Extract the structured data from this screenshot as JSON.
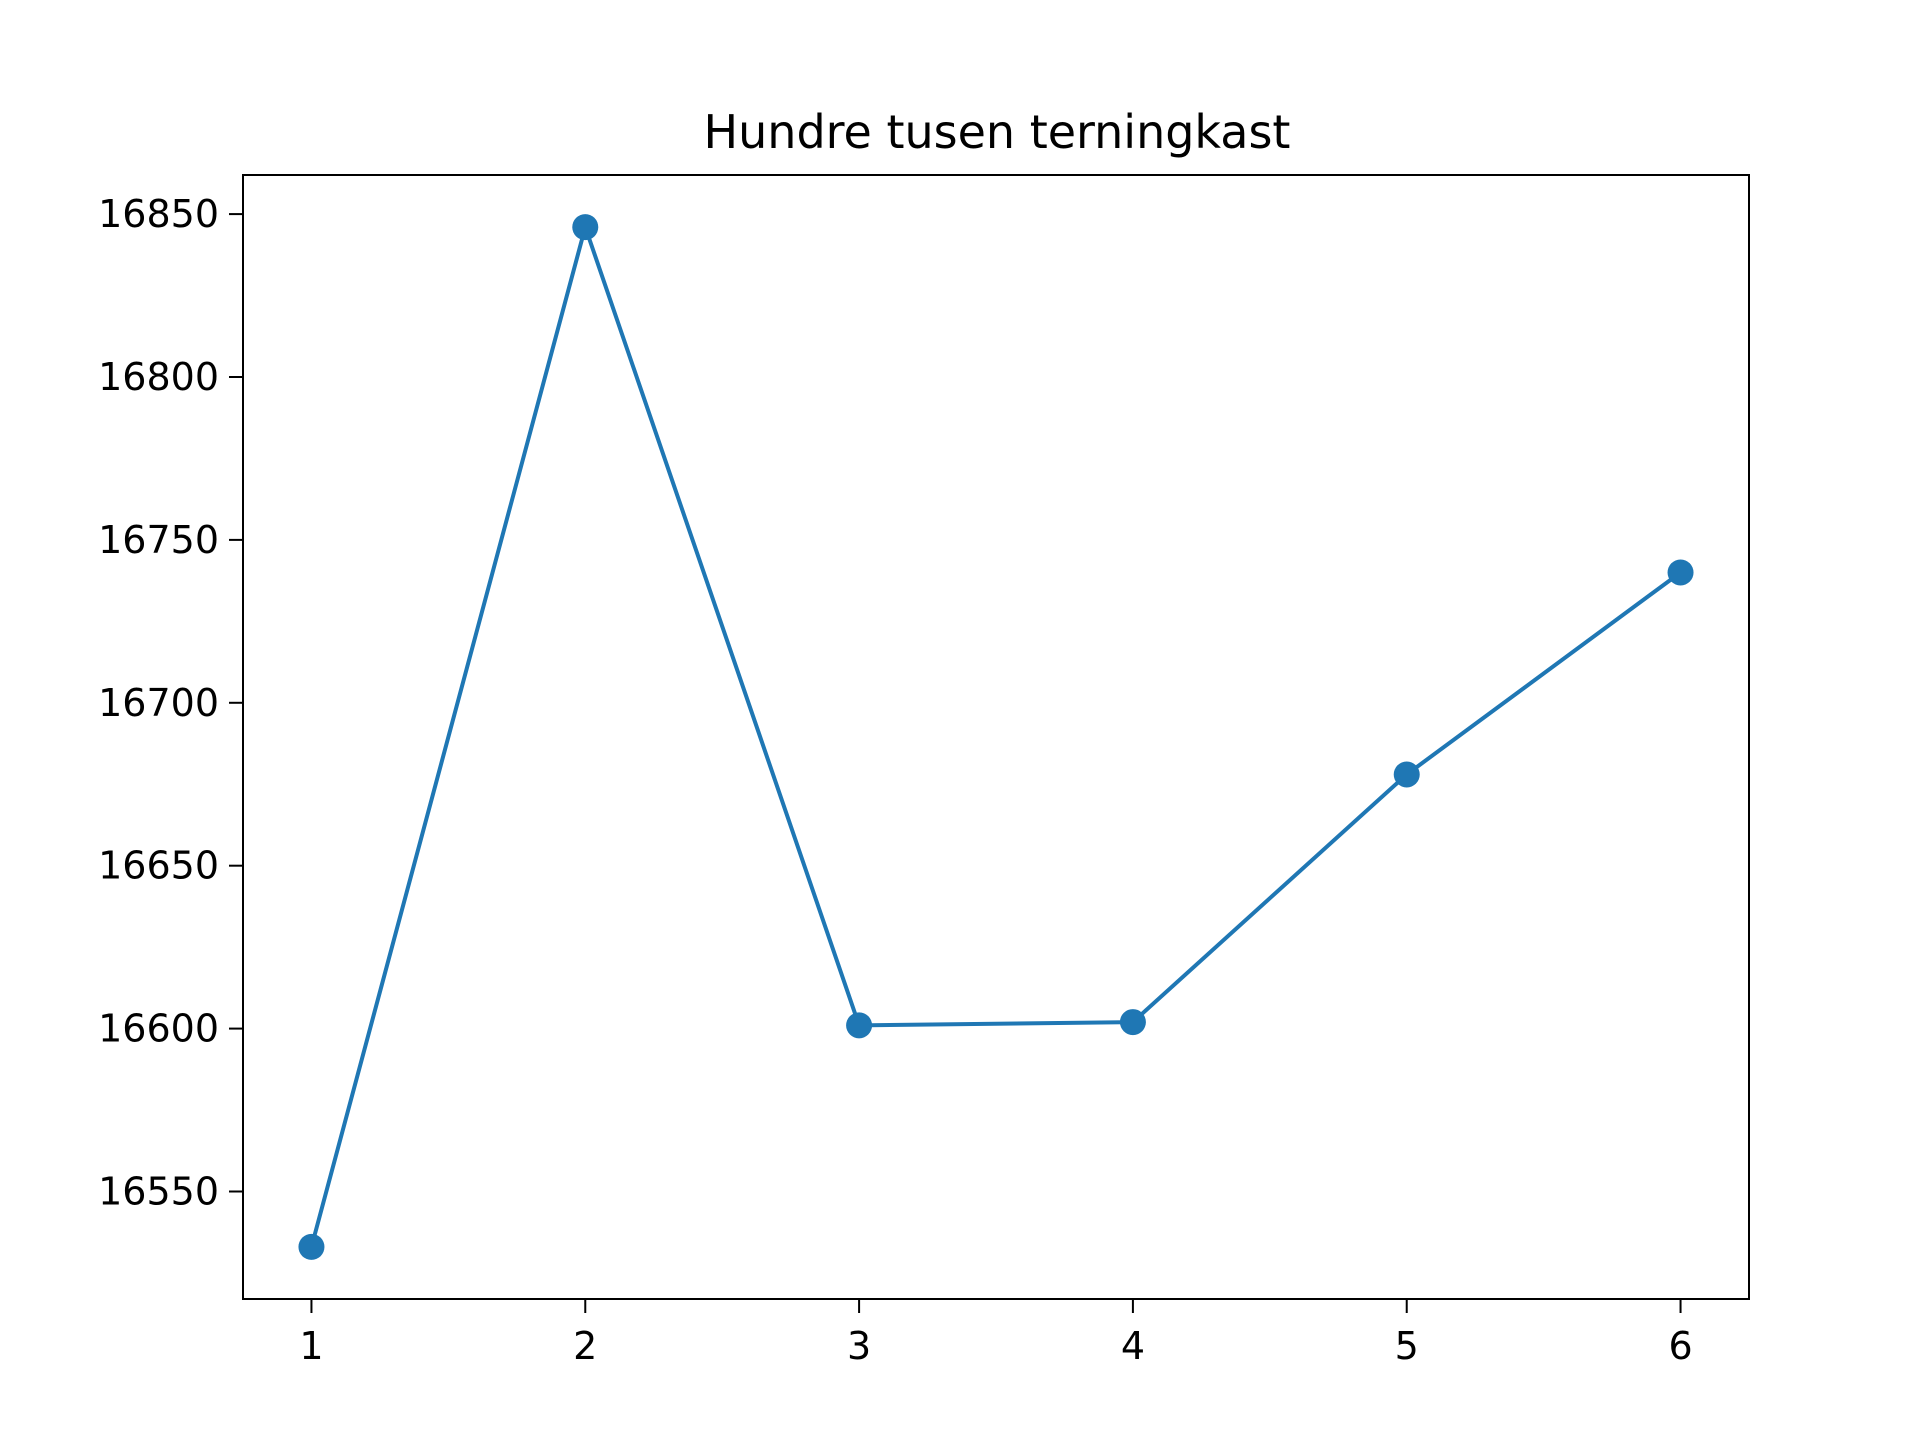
{
  "chart_data": {
    "type": "line",
    "title": "Hundre tusen terningkast",
    "xlabel": "",
    "ylabel": "",
    "x": [
      1,
      2,
      3,
      4,
      5,
      6
    ],
    "series": [
      {
        "values": [
          16533,
          16846,
          16601,
          16602,
          16678,
          16740
        ]
      }
    ],
    "xticks": [
      "1",
      "2",
      "3",
      "4",
      "5",
      "6"
    ],
    "yticks": [
      "16550",
      "16600",
      "16650",
      "16700",
      "16750",
      "16800",
      "16850"
    ],
    "xlim": [
      0.75,
      6.25
    ],
    "ylim": [
      16517,
      16862
    ],
    "grid": false,
    "markers": true,
    "colors": {
      "line": "#1f77b4",
      "axis": "#000000"
    }
  }
}
